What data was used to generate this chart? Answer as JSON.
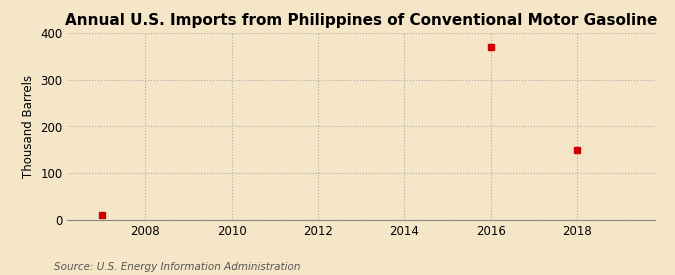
{
  "title": "Annual U.S. Imports from Philippines of Conventional Motor Gasoline",
  "ylabel": "Thousand Barrels",
  "source": "Source: U.S. Energy Information Administration",
  "background_color": "#f5e6c8",
  "plot_bg_color": "#f5e6c8",
  "years": [
    2007,
    2016,
    2018
  ],
  "values": [
    10,
    370,
    150
  ],
  "xlim": [
    2006.2,
    2019.8
  ],
  "ylim": [
    0,
    400
  ],
  "yticks": [
    0,
    100,
    200,
    300,
    400
  ],
  "xticks": [
    2008,
    2010,
    2012,
    2014,
    2016,
    2018
  ],
  "marker_color": "#cc0000",
  "marker_size": 4,
  "grid_color": "#aaaaaa",
  "title_fontsize": 11,
  "label_fontsize": 8.5,
  "tick_fontsize": 8.5,
  "source_fontsize": 7.5
}
